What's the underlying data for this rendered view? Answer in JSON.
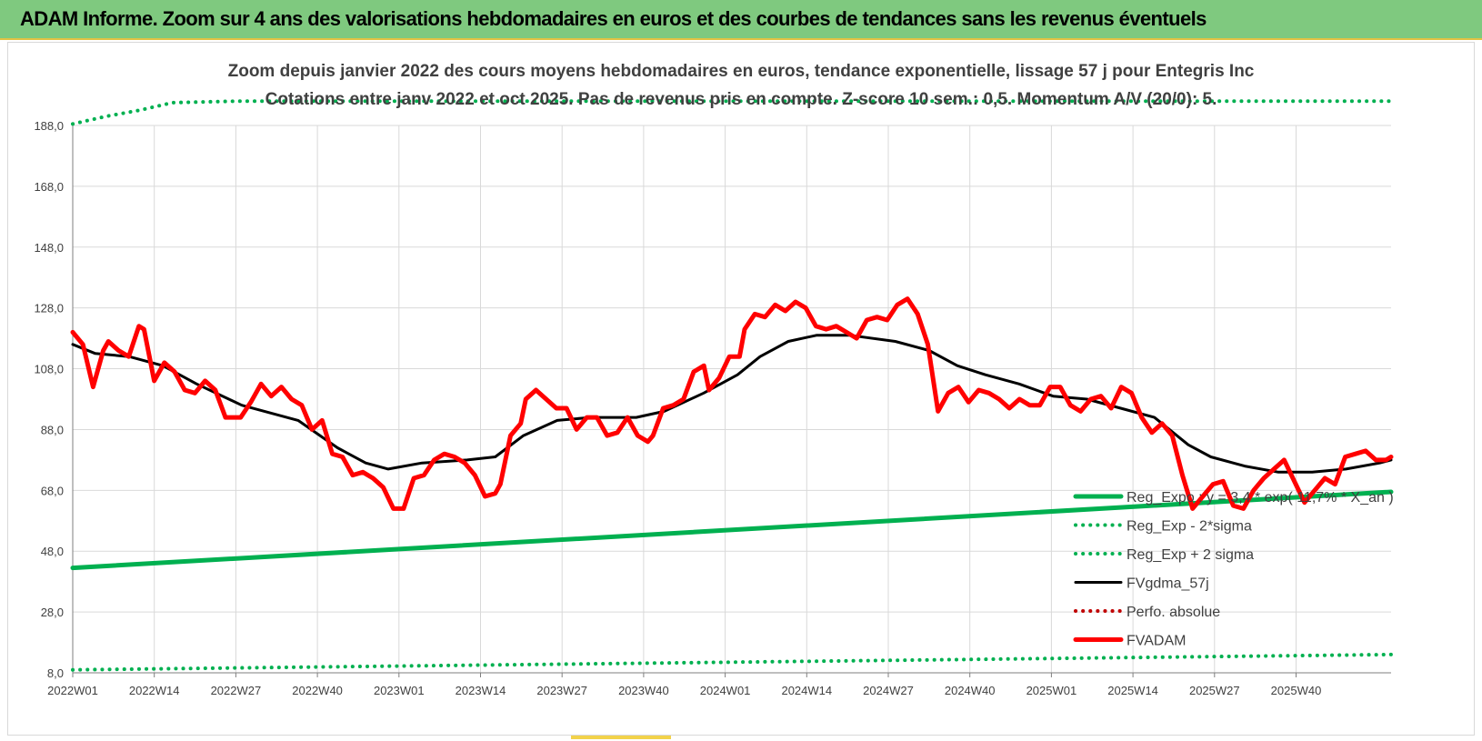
{
  "header": {
    "title": "ADAM Informe. Zoom sur 4 ans des valorisations hebdomadaires en euros et des courbes de tendances sans les revenus éventuels"
  },
  "colors": {
    "banner": "#7fc97f",
    "reg_expo": "#00b050",
    "fvgdma": "#000000",
    "fvadam": "#ff0000",
    "perfo": "#c00000",
    "grid": "#d9d9d9"
  },
  "chart_data": {
    "type": "line",
    "title": "Zoom depuis janvier 2022 des cours moyens hebdomadaires en euros, tendance exponentielle, lissage 57 j pour Entegris Inc",
    "subtitle": "Cotations entre janv 2022 et oct 2025. Pas de revenus pris en compte. Z-score 10 sem.: 0,5. Momentum A/V (20/0): 5.",
    "xlabel": "",
    "ylabel": "",
    "ylim": [
      8,
      196
    ],
    "y_ticks": [
      "188,0",
      "168,0",
      "148,0",
      "128,0",
      "108,0",
      "88,0",
      "68,0",
      "48,0",
      "28,0",
      "8,0"
    ],
    "y_tick_values": [
      188,
      168,
      148,
      128,
      108,
      88,
      68,
      48,
      28,
      8
    ],
    "x_ticks": [
      "2022W01",
      "2022W14",
      "2022W27",
      "2022W40",
      "2023W01",
      "2023W14",
      "2023W27",
      "2023W40",
      "2024W01",
      "2024W14",
      "2024W27",
      "2024W40",
      "2025W01",
      "2025W14",
      "2025W27",
      "2025W40"
    ],
    "x_tick_index": [
      0,
      13,
      26,
      39,
      52,
      65,
      78,
      91,
      104,
      117,
      130,
      143,
      156,
      169,
      182,
      195
    ],
    "n_weeks": 199,
    "series": [
      {
        "name": "Reg_Expo : y = 3,4 * exp( 11,7% * X_an )",
        "style": "solid-thick",
        "color": "#00b050",
        "points": [
          [
            0,
            42.5
          ],
          [
            198,
            67.5
          ]
        ]
      },
      {
        "name": "Reg_Exp - 2*sigma",
        "style": "dotted",
        "color": "#00b050",
        "points": [
          [
            0,
            9
          ],
          [
            198,
            14
          ]
        ]
      },
      {
        "name": "Reg_Exp + 2 sigma",
        "style": "dotted",
        "color": "#00b050",
        "points": [
          [
            0,
            188.5
          ],
          [
            5,
            191
          ],
          [
            10,
            193
          ],
          [
            15,
            195.5
          ],
          [
            25,
            196
          ],
          [
            198,
            196
          ]
        ]
      },
      {
        "name": "FVgdma_57j",
        "style": "solid",
        "color": "#000000",
        "points": [
          [
            0,
            116
          ],
          [
            4,
            113
          ],
          [
            10,
            112
          ],
          [
            16,
            109
          ],
          [
            22,
            103
          ],
          [
            30,
            96
          ],
          [
            40,
            91
          ],
          [
            47,
            82
          ],
          [
            52,
            77
          ],
          [
            56,
            75
          ],
          [
            62,
            77
          ],
          [
            70,
            78
          ],
          [
            75,
            79
          ],
          [
            80,
            86
          ],
          [
            86,
            91
          ],
          [
            92,
            92
          ],
          [
            100,
            92
          ],
          [
            105,
            94
          ],
          [
            112,
            100
          ],
          [
            118,
            106
          ],
          [
            122,
            112
          ],
          [
            127,
            117
          ],
          [
            132,
            119
          ],
          [
            138,
            119
          ],
          [
            146,
            117
          ],
          [
            152,
            114
          ],
          [
            157,
            109
          ],
          [
            162,
            106
          ],
          [
            168,
            103
          ],
          [
            174,
            99
          ],
          [
            180,
            98
          ],
          [
            186,
            95
          ],
          [
            192,
            92
          ],
          [
            198,
            83
          ],
          [
            202,
            79
          ],
          [
            208,
            76
          ],
          [
            214,
            74
          ],
          [
            220,
            74
          ],
          [
            226,
            75
          ],
          [
            232,
            77
          ],
          [
            234,
            78
          ]
        ]
      },
      {
        "name": "Perfo. absolue",
        "style": "dotted",
        "color": "#c00000",
        "points": []
      },
      {
        "name": "FVADAM",
        "style": "solid-thick",
        "color": "#ff0000",
        "points": [
          [
            0,
            120
          ],
          [
            2,
            116
          ],
          [
            4,
            102
          ],
          [
            6,
            114
          ],
          [
            7,
            117
          ],
          [
            9,
            114
          ],
          [
            11,
            112
          ],
          [
            13,
            122
          ],
          [
            14,
            121
          ],
          [
            16,
            104
          ],
          [
            18,
            110
          ],
          [
            20,
            107
          ],
          [
            22,
            101
          ],
          [
            24,
            100
          ],
          [
            26,
            104
          ],
          [
            28,
            101
          ],
          [
            30,
            92
          ],
          [
            33,
            92
          ],
          [
            35,
            97
          ],
          [
            37,
            103
          ],
          [
            39,
            99
          ],
          [
            41,
            102
          ],
          [
            43,
            98
          ],
          [
            45,
            96
          ],
          [
            47,
            88
          ],
          [
            49,
            91
          ],
          [
            51,
            80
          ],
          [
            53,
            79
          ],
          [
            55,
            73
          ],
          [
            57,
            74
          ],
          [
            59,
            72
          ],
          [
            61,
            69
          ],
          [
            63,
            62
          ],
          [
            65,
            62
          ],
          [
            67,
            72
          ],
          [
            69,
            73
          ],
          [
            71,
            78
          ],
          [
            73,
            80
          ],
          [
            75,
            79
          ],
          [
            77,
            77
          ],
          [
            79,
            73
          ],
          [
            81,
            66
          ],
          [
            83,
            67
          ],
          [
            84,
            70
          ],
          [
            86,
            86
          ],
          [
            88,
            90
          ],
          [
            89,
            98
          ],
          [
            91,
            101
          ],
          [
            93,
            98
          ],
          [
            95,
            95
          ],
          [
            97,
            95
          ],
          [
            99,
            88
          ],
          [
            101,
            92
          ],
          [
            103,
            92
          ],
          [
            105,
            86
          ],
          [
            107,
            87
          ],
          [
            109,
            92
          ],
          [
            111,
            86
          ],
          [
            113,
            84
          ],
          [
            114,
            86
          ],
          [
            116,
            95
          ],
          [
            118,
            96
          ],
          [
            120,
            98
          ],
          [
            122,
            107
          ],
          [
            124,
            109
          ],
          [
            125,
            101
          ],
          [
            127,
            105
          ],
          [
            129,
            112
          ],
          [
            131,
            112
          ],
          [
            132,
            121
          ],
          [
            134,
            126
          ],
          [
            136,
            125
          ],
          [
            138,
            129
          ],
          [
            140,
            127
          ],
          [
            142,
            130
          ],
          [
            144,
            128
          ],
          [
            146,
            122
          ],
          [
            148,
            121
          ],
          [
            150,
            122
          ],
          [
            152,
            120
          ],
          [
            154,
            118
          ],
          [
            156,
            124
          ],
          [
            158,
            125
          ],
          [
            160,
            124
          ],
          [
            162,
            129
          ],
          [
            164,
            131
          ],
          [
            166,
            126
          ],
          [
            168,
            116
          ],
          [
            170,
            94
          ],
          [
            172,
            100
          ],
          [
            174,
            102
          ],
          [
            176,
            97
          ],
          [
            178,
            101
          ],
          [
            180,
            100
          ],
          [
            182,
            98
          ],
          [
            184,
            95
          ],
          [
            186,
            98
          ],
          [
            188,
            96
          ],
          [
            190,
            96
          ],
          [
            192,
            102
          ],
          [
            194,
            102
          ],
          [
            196,
            96
          ],
          [
            198,
            94
          ],
          [
            200,
            98
          ],
          [
            202,
            99
          ],
          [
            204,
            95
          ],
          [
            206,
            102
          ],
          [
            208,
            100
          ],
          [
            210,
            92
          ],
          [
            212,
            87
          ],
          [
            214,
            90
          ],
          [
            216,
            86
          ],
          [
            218,
            73
          ],
          [
            220,
            62
          ],
          [
            222,
            66
          ],
          [
            224,
            70
          ],
          [
            226,
            71
          ],
          [
            228,
            63
          ],
          [
            230,
            62
          ],
          [
            232,
            68
          ],
          [
            234,
            72
          ],
          [
            236,
            75
          ],
          [
            238,
            78
          ],
          [
            240,
            71
          ],
          [
            242,
            64
          ],
          [
            244,
            68
          ],
          [
            246,
            72
          ],
          [
            248,
            70
          ],
          [
            250,
            79
          ],
          [
            252,
            80
          ],
          [
            254,
            81
          ],
          [
            256,
            78
          ],
          [
            258,
            78
          ],
          [
            259,
            79
          ]
        ]
      }
    ],
    "legend": {
      "position": "bottom-right",
      "entries": [
        "Reg_Expo : y = 3,4 * exp( 11,7% * X_an )",
        "Reg_Exp - 2*sigma",
        "Reg_Exp + 2 sigma",
        "FVgdma_57j",
        "Perfo. absolue",
        "FVADAM"
      ]
    }
  }
}
